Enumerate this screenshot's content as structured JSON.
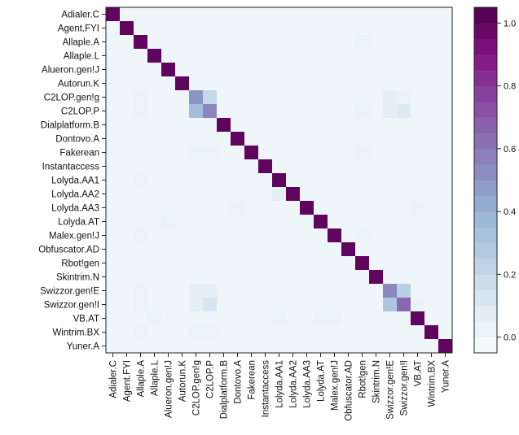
{
  "chart_data": {
    "type": "heatmap",
    "title": "",
    "xlabel": "",
    "ylabel": "",
    "categories": [
      "Adialer.C",
      "Agent.FYI",
      "Allaple.A",
      "Allaple.L",
      "Alueron.gen!J",
      "Autorun.K",
      "C2LOP.gen!g",
      "C2LOP.P",
      "Dialplatform.B",
      "Dontovo.A",
      "Fakerean",
      "Instantaccess",
      "Lolyda.AA1",
      "Lolyda.AA2",
      "Lolyda.AA3",
      "Lolyda.AT",
      "Malex.gen!J",
      "Obfuscator.AD",
      "Rbot!gen",
      "Skintrim.N",
      "Swizzor.gen!E",
      "Swizzor.gen!I",
      "VB.AT",
      "Wintrim.BX",
      "Yuner.A"
    ],
    "diagonal": [
      1.0,
      1.0,
      1.0,
      1.0,
      1.0,
      1.0,
      0.5,
      0.55,
      1.0,
      1.0,
      1.0,
      1.0,
      1.0,
      1.0,
      1.0,
      1.0,
      1.0,
      1.0,
      1.0,
      1.0,
      0.55,
      0.65,
      1.0,
      1.0,
      1.0
    ],
    "off_diagonal": [
      {
        "row": "Allaple.A",
        "col": "Rbot!gen",
        "value": 0.03
      },
      {
        "row": "C2LOP.gen!g",
        "col": "Allaple.A",
        "value": 0.03
      },
      {
        "row": "C2LOP.gen!g",
        "col": "C2LOP.P",
        "value": 0.2
      },
      {
        "row": "C2LOP.gen!g",
        "col": "Swizzor.gen!E",
        "value": 0.06
      },
      {
        "row": "C2LOP.gen!g",
        "col": "Swizzor.gen!I",
        "value": 0.03
      },
      {
        "row": "C2LOP.P",
        "col": "Allaple.A",
        "value": 0.03
      },
      {
        "row": "C2LOP.P",
        "col": "C2LOP.gen!g",
        "value": 0.35
      },
      {
        "row": "C2LOP.P",
        "col": "Rbot!gen",
        "value": 0.03
      },
      {
        "row": "C2LOP.P",
        "col": "Swizzor.gen!E",
        "value": 0.06
      },
      {
        "row": "C2LOP.P",
        "col": "Swizzor.gen!I",
        "value": 0.1
      },
      {
        "row": "Fakerean",
        "col": "C2LOP.gen!g",
        "value": 0.03
      },
      {
        "row": "Fakerean",
        "col": "C2LOP.P",
        "value": 0.03
      },
      {
        "row": "Fakerean",
        "col": "Rbot!gen",
        "value": 0.03
      },
      {
        "row": "Lolyda.AA1",
        "col": "Allaple.A",
        "value": 0.03
      },
      {
        "row": "Lolyda.AA2",
        "col": "Lolyda.AA1",
        "value": 0.06
      },
      {
        "row": "Lolyda.AA3",
        "col": "Dontovo.A",
        "value": 0.03
      },
      {
        "row": "Lolyda.AA3",
        "col": "VB.AT",
        "value": 0.03
      },
      {
        "row": "Lolyda.AT",
        "col": "Alueron.gen!J",
        "value": 0.03
      },
      {
        "row": "Malex.gen!J",
        "col": "Allaple.A",
        "value": 0.03
      },
      {
        "row": "Malex.gen!J",
        "col": "Rbot!gen",
        "value": 0.02
      },
      {
        "row": "Swizzor.gen!E",
        "col": "Allaple.A",
        "value": 0.03
      },
      {
        "row": "Swizzor.gen!E",
        "col": "C2LOP.gen!g",
        "value": 0.06
      },
      {
        "row": "Swizzor.gen!E",
        "col": "C2LOP.P",
        "value": 0.06
      },
      {
        "row": "Swizzor.gen!E",
        "col": "Swizzor.gen!I",
        "value": 0.25
      },
      {
        "row": "Swizzor.gen!I",
        "col": "Allaple.A",
        "value": 0.03
      },
      {
        "row": "Swizzor.gen!I",
        "col": "C2LOP.gen!g",
        "value": 0.06
      },
      {
        "row": "Swizzor.gen!I",
        "col": "C2LOP.P",
        "value": 0.12
      },
      {
        "row": "Swizzor.gen!I",
        "col": "Swizzor.gen!E",
        "value": 0.3
      },
      {
        "row": "Swizzor.gen!I",
        "col": "VB.AT",
        "value": 0.03
      },
      {
        "row": "VB.AT",
        "col": "Allaple.L",
        "value": 0.03
      },
      {
        "row": "VB.AT",
        "col": "Lolyda.AA1",
        "value": 0.03
      },
      {
        "row": "VB.AT",
        "col": "Lolyda.AT",
        "value": 0.03
      },
      {
        "row": "VB.AT",
        "col": "Malex.gen!J",
        "value": 0.03
      },
      {
        "row": "Wintrim.BX",
        "col": "Allaple.A",
        "value": 0.03
      },
      {
        "row": "Wintrim.BX",
        "col": "C2LOP.gen!g",
        "value": 0.03
      },
      {
        "row": "Wintrim.BX",
        "col": "C2LOP.P",
        "value": 0.03
      }
    ],
    "colorbar": {
      "range": [
        -0.05,
        1.05
      ],
      "ticks": [
        0.0,
        0.2,
        0.4,
        0.6,
        0.8,
        1.0
      ],
      "tick_labels": [
        "0.0",
        "0.2",
        "0.4",
        "0.6",
        "0.8",
        "1.0"
      ],
      "stops": [
        "#f7fcfd",
        "#e0ecf4",
        "#bfd3e6",
        "#9ebcda",
        "#8c96c6",
        "#8c6bb1",
        "#88419d",
        "#810f7c",
        "#4d004b"
      ]
    },
    "grid": false
  }
}
